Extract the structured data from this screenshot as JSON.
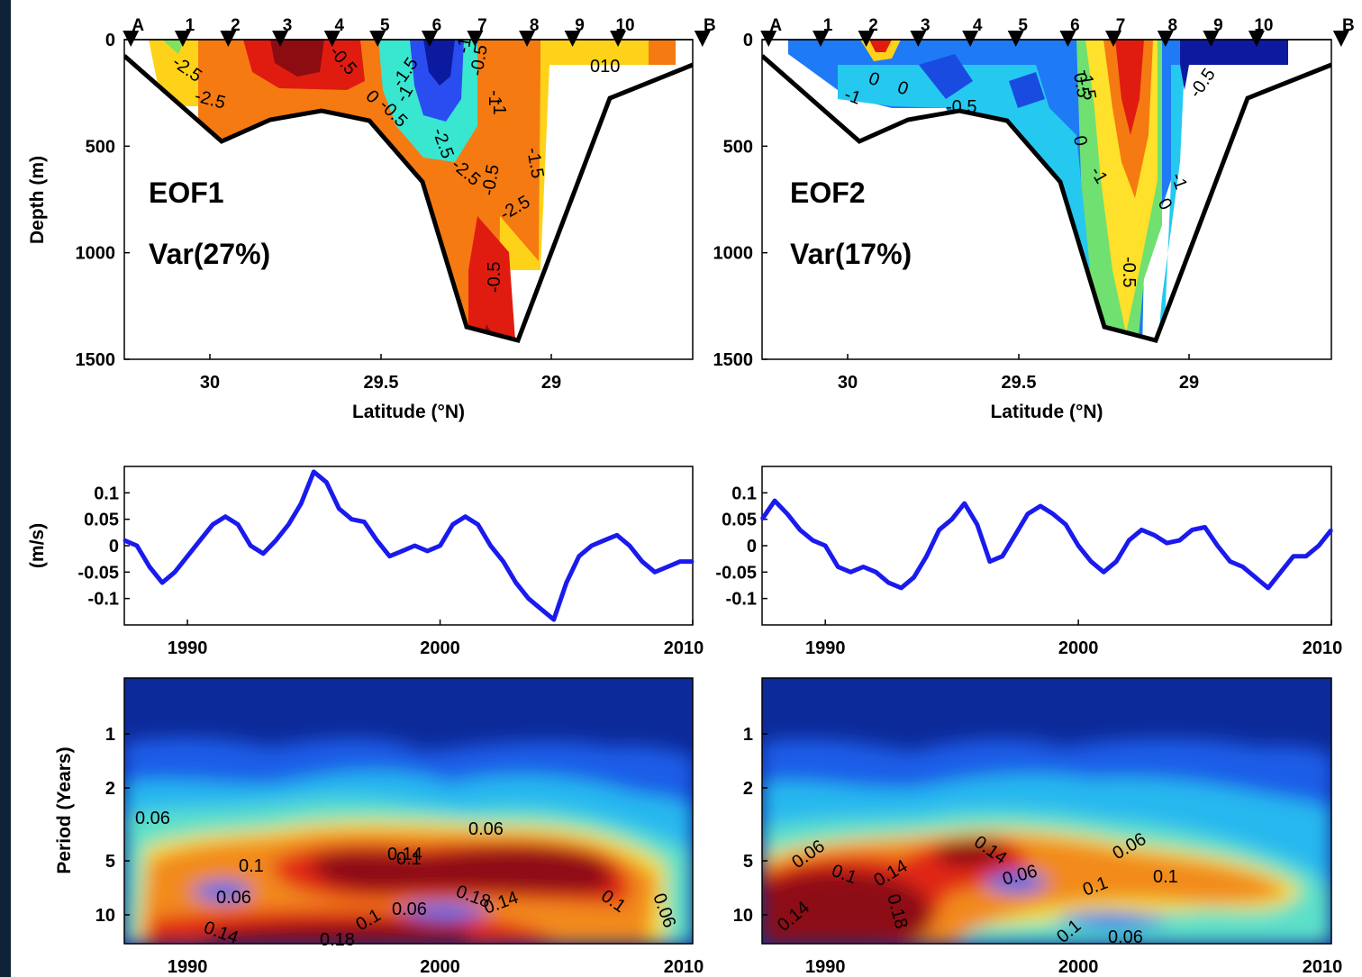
{
  "colors": {
    "background": "#0f2336",
    "series": "#1a1aee",
    "bathymetry": "#000000"
  },
  "chart_data": [
    {
      "type": "heatmap",
      "panel": "EOF1 spatial pattern",
      "label": "EOF1",
      "variance": "Var(27%)",
      "xlabel": "Latitude (°N)",
      "ylabel": "Depth (m)",
      "xlim": [
        30.3,
        28.55
      ],
      "ylim": [
        1500,
        0
      ],
      "xticks": [
        "30",
        "29.5",
        "29"
      ],
      "yticks": [
        "0",
        "500",
        "1000",
        "1500"
      ],
      "stations": [
        "A",
        "1",
        "2",
        "3",
        "4",
        "5",
        "6",
        "7",
        "8",
        "9",
        "10",
        "B"
      ],
      "station_lat": [
        30.28,
        30.12,
        29.98,
        29.82,
        29.66,
        29.52,
        29.36,
        29.22,
        29.06,
        28.92,
        28.78,
        28.52
      ],
      "bathymetry": {
        "lat": [
          30.28,
          29.98,
          29.82,
          29.62,
          29.52,
          29.38,
          29.25,
          28.98,
          28.85,
          28.55
        ],
        "depth": [
          50,
          480,
          370,
          330,
          390,
          670,
          1350,
          1410,
          270,
          130
        ]
      },
      "contour_labels": [
        "-2.5",
        "-0.5",
        "-1.5",
        "-2.5",
        "0",
        "-0.5",
        "-1",
        "-1",
        "-0.5",
        "-1",
        "-2.5",
        "-1.5",
        "-2.5",
        "-0.5",
        "010",
        "-0.5",
        "-2.5",
        "-1"
      ]
    },
    {
      "type": "heatmap",
      "panel": "EOF2 spatial pattern",
      "label": "EOF2",
      "variance": "Var(17%)",
      "xlabel": "Latitude (°N)",
      "ylabel": "",
      "xlim": [
        30.3,
        28.55
      ],
      "ylim": [
        1500,
        0
      ],
      "xticks": [
        "30",
        "29.5",
        "29"
      ],
      "yticks": [
        "0",
        "500",
        "1000",
        "1500"
      ],
      "stations": [
        "A",
        "1",
        "2",
        "3",
        "4",
        "5",
        "6",
        "7",
        "8",
        "9",
        "10",
        "B"
      ],
      "station_lat": [
        30.28,
        30.12,
        29.98,
        29.82,
        29.66,
        29.52,
        29.36,
        29.22,
        29.06,
        28.92,
        28.78,
        28.52
      ],
      "bathymetry": {
        "lat": [
          30.28,
          29.98,
          29.82,
          29.62,
          29.52,
          29.38,
          29.25,
          28.98,
          28.85,
          28.55
        ],
        "depth": [
          50,
          480,
          370,
          330,
          390,
          670,
          1350,
          1410,
          270,
          130
        ]
      },
      "contour_labels": [
        "0",
        "0",
        "-1",
        "-0.5",
        "-1.5",
        "0.5",
        "0",
        "-1",
        "-1",
        "0",
        "-0.5",
        "-0.5"
      ]
    },
    {
      "type": "line",
      "panel": "EOF1 principal component",
      "ylabel": "(m/s)",
      "xlabel": "",
      "xlim": [
        1987.5,
        2010
      ],
      "ylim": [
        -0.15,
        0.15
      ],
      "xticks": [
        "1990",
        "2000",
        "2010"
      ],
      "yticks": [
        "0.1",
        "0.05",
        "0",
        "-0.05",
        "-0.1"
      ],
      "ytick_values": [
        0.1,
        0.05,
        0,
        -0.05,
        -0.1
      ],
      "x": [
        1987.5,
        1988,
        1988.5,
        1989,
        1989.5,
        1990,
        1990.5,
        1991,
        1991.5,
        1992,
        1992.5,
        1993,
        1993.5,
        1994,
        1994.5,
        1995,
        1995.5,
        1996,
        1996.5,
        1997,
        1997.5,
        1998,
        1998.5,
        1999,
        1999.5,
        2000,
        2000.5,
        2001,
        2001.5,
        2002,
        2002.5,
        2003,
        2003.5,
        2004,
        2004.5,
        2005,
        2005.5,
        2006,
        2006.5,
        2007,
        2007.5,
        2008,
        2008.5,
        2009,
        2009.5,
        2010
      ],
      "values": [
        0.01,
        0.0,
        -0.04,
        -0.07,
        -0.05,
        -0.02,
        0.01,
        0.04,
        0.055,
        0.04,
        0.0,
        -0.015,
        0.01,
        0.04,
        0.08,
        0.14,
        0.12,
        0.07,
        0.05,
        0.045,
        0.01,
        -0.02,
        -0.01,
        0.0,
        -0.01,
        0.0,
        0.04,
        0.055,
        0.04,
        0.0,
        -0.03,
        -0.07,
        -0.1,
        -0.12,
        -0.14,
        -0.07,
        -0.02,
        0.0,
        0.01,
        0.02,
        0.0,
        -0.03,
        -0.05,
        -0.04,
        -0.03,
        -0.03
      ]
    },
    {
      "type": "line",
      "panel": "EOF2 principal component",
      "ylabel": "",
      "xlabel": "",
      "xlim": [
        1987.5,
        2010
      ],
      "ylim": [
        -0.15,
        0.15
      ],
      "xticks": [
        "1990",
        "2000",
        "2010"
      ],
      "yticks": [
        "0.1",
        "0.05",
        "0",
        "-0.05",
        "-0.1"
      ],
      "ytick_values": [
        0.1,
        0.05,
        0,
        -0.05,
        -0.1
      ],
      "x": [
        1987.5,
        1988,
        1988.5,
        1989,
        1989.5,
        1990,
        1990.5,
        1991,
        1991.5,
        1992,
        1992.5,
        1993,
        1993.5,
        1994,
        1994.5,
        1995,
        1995.5,
        1996,
        1996.5,
        1997,
        1997.5,
        1998,
        1998.5,
        1999,
        1999.5,
        2000,
        2000.5,
        2001,
        2001.5,
        2002,
        2002.5,
        2003,
        2003.5,
        2004,
        2004.5,
        2005,
        2005.5,
        2006,
        2006.5,
        2007,
        2007.5,
        2008,
        2008.5,
        2009,
        2009.5,
        2010
      ],
      "values": [
        0.05,
        0.085,
        0.06,
        0.03,
        0.01,
        0.0,
        -0.04,
        -0.05,
        -0.04,
        -0.05,
        -0.07,
        -0.08,
        -0.06,
        -0.02,
        0.03,
        0.05,
        0.08,
        0.04,
        -0.03,
        -0.02,
        0.02,
        0.06,
        0.075,
        0.06,
        0.04,
        0.0,
        -0.03,
        -0.05,
        -0.03,
        0.01,
        0.03,
        0.02,
        0.005,
        0.01,
        0.03,
        0.035,
        0.0,
        -0.03,
        -0.04,
        -0.06,
        -0.08,
        -0.05,
        -0.02,
        -0.02,
        0.0,
        0.03
      ]
    },
    {
      "type": "heatmap",
      "panel": "EOF1 wavelet power",
      "ylabel": "Period (Years)",
      "xlabel": "",
      "xlim": [
        1987.5,
        2010
      ],
      "yticks": [
        "1",
        "2",
        "5",
        "10"
      ],
      "xticks": [
        "1990",
        "2000",
        "2010"
      ],
      "contour_labels": [
        "0.06",
        "0.06",
        "0.1",
        "0.14",
        "0.1",
        "0.06",
        "0.06",
        "0.18",
        "0.14",
        "0.1",
        "0.06",
        "0.1",
        "0.14",
        "0.18"
      ]
    },
    {
      "type": "heatmap",
      "panel": "EOF2 wavelet power",
      "ylabel": "",
      "xlabel": "",
      "xlim": [
        1987.5,
        2010
      ],
      "yticks": [
        "1",
        "2",
        "5",
        "10"
      ],
      "xticks": [
        "1990",
        "2000",
        "2010"
      ],
      "contour_labels": [
        "0.06",
        "0.1",
        "0.14",
        "0.14",
        "0.06",
        "0.1",
        "0.06",
        "0.1",
        "0.18",
        "0.14",
        "0.1",
        "0.06"
      ]
    }
  ]
}
